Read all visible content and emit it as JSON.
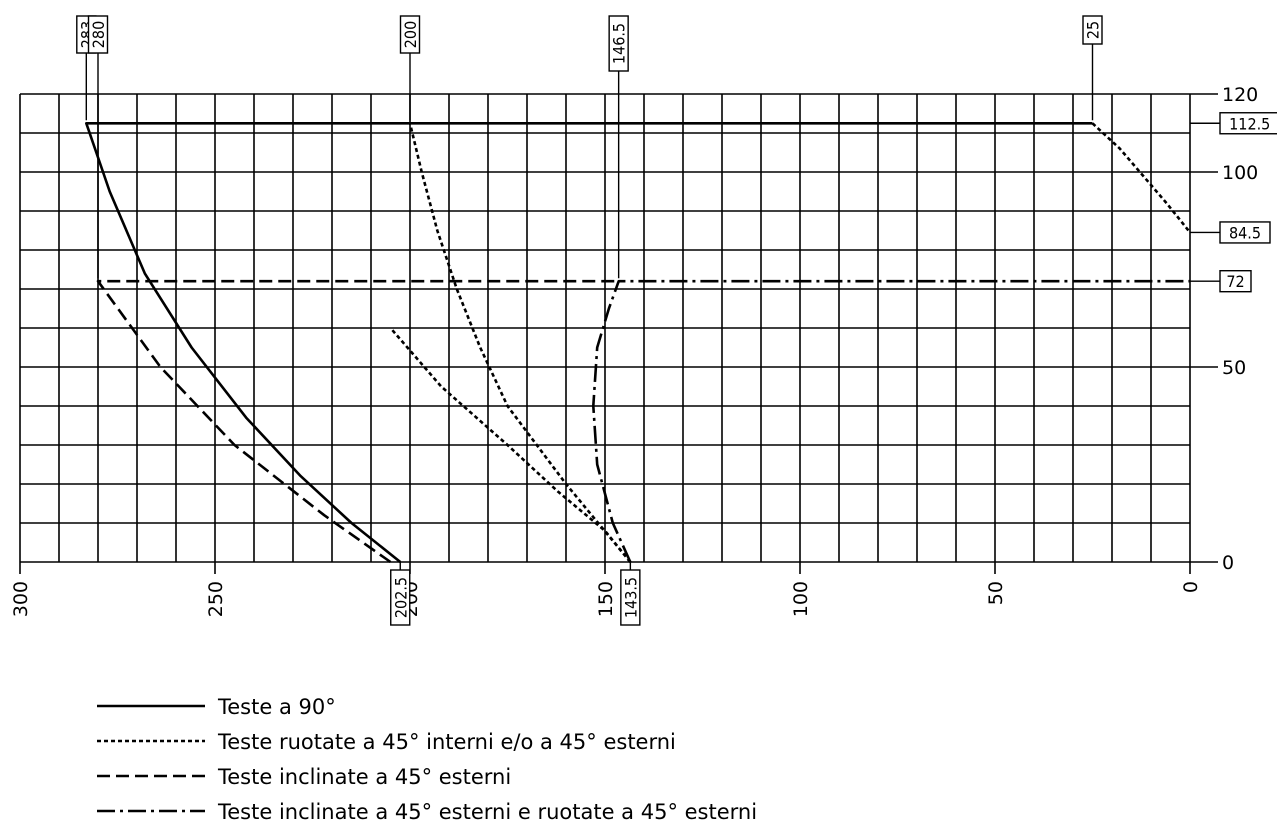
{
  "chart_data": {
    "type": "line",
    "xlim": [
      300,
      0
    ],
    "ylim": [
      0,
      120
    ],
    "x_ticks": [
      300,
      250,
      200,
      150,
      100,
      50,
      0
    ],
    "y_ticks": [
      0,
      50,
      100,
      120
    ],
    "grid": true,
    "series": [
      {
        "name": "Teste a 90°",
        "style": "solid",
        "x": [
          202.5,
          215,
          228,
          242,
          256,
          268,
          277,
          283,
          283,
          25
        ],
        "y": [
          0,
          10,
          22,
          37,
          55,
          74,
          95,
          112.5,
          112.5,
          112.5
        ]
      },
      {
        "name": "Teste ruotate a 45° interni e/o a 45° esterni",
        "style": "dotted",
        "x": [
          143.5,
          160,
          175,
          182,
          188,
          193,
          197,
          200
        ],
        "y": [
          0,
          20,
          40,
          55,
          70,
          85,
          100,
          112.5
        ]
      },
      {
        "name": "Teste inclinate a 45° esterni",
        "style": "dashed",
        "x": [
          205,
          222,
          245,
          264,
          280,
          280,
          146.5
        ],
        "y": [
          0,
          12,
          30,
          50,
          72,
          72,
          72
        ]
      },
      {
        "name": "Teste inclinate a 45° esterni e ruotate a 45° esterni",
        "style": "dashdot",
        "x": [
          143.5,
          148,
          152,
          153,
          152,
          149,
          146.5,
          146.5,
          0
        ],
        "y": [
          0,
          10,
          25,
          40,
          55,
          65,
          72,
          72,
          72
        ]
      },
      {
        "name": "Teste ruotate a 45° interni e/o a 45° esterni",
        "style": "dotted",
        "x": [
          143.5,
          150,
          162,
          175,
          192,
          205
        ],
        "y": [
          0,
          8,
          18,
          30,
          45,
          60
        ]
      },
      {
        "name": "Teste ruotate a 45° interni e/o a 45° esterni",
        "style": "dotted",
        "x": [
          25,
          18,
          12,
          6,
          0
        ],
        "y": [
          112.5,
          106,
          99,
          92,
          84.5
        ]
      }
    ],
    "callouts_top": [
      "283",
      "280",
      "200",
      "146.5",
      "25"
    ],
    "callouts_bottom": [
      "202.5",
      "143.5"
    ],
    "callouts_right": [
      "112.5",
      "84.5",
      "72"
    ]
  },
  "legend": [
    "Teste a 90°",
    "Teste ruotate a 45° interni e/o a 45° esterni",
    "Teste inclinate a 45° esterni",
    "Teste inclinate a 45° esterni e ruotate a 45° esterni"
  ]
}
